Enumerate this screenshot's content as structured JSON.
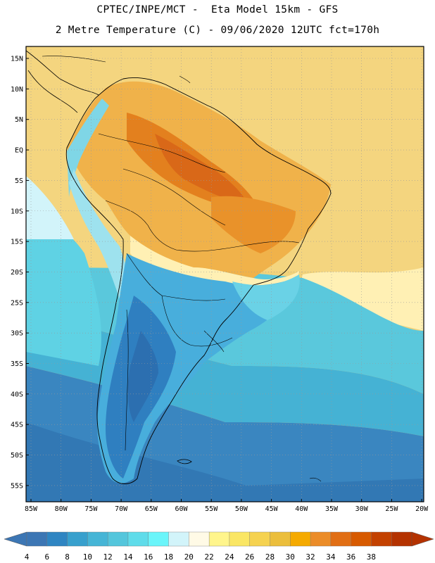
{
  "header": {
    "line1": "CPTEC/INPE/MCT -  Eta Model 15km - GFS",
    "line2": "2 Metre Temperature (C) - 09/06/2020 12UTC fct=170h"
  },
  "map": {
    "lat_labels": [
      "15N",
      "10N",
      "5N",
      "EQ",
      "5S",
      "10S",
      "15S",
      "20S",
      "25S",
      "30S",
      "35S",
      "40S",
      "45S",
      "50S",
      "55S"
    ],
    "lon_labels": [
      "85W",
      "80W",
      "75W",
      "70W",
      "65W",
      "60W",
      "55W",
      "50W",
      "45W",
      "40W",
      "35W",
      "30W",
      "25W",
      "20W"
    ]
  },
  "colorbar": {
    "labels": [
      "4",
      "6",
      "8",
      "10",
      "12",
      "14",
      "16",
      "18",
      "20",
      "22",
      "24",
      "26",
      "28",
      "30",
      "32",
      "34",
      "36",
      "38"
    ],
    "colors": [
      "#3c76b4",
      "#2f85c2",
      "#38a0cd",
      "#46b5d6",
      "#54c6dc",
      "#5fdcea",
      "#6af5fa",
      "#d2f4fa",
      "#fffae6",
      "#fff58c",
      "#fae664",
      "#f5d250",
      "#ebbe3c",
      "#f5aa00",
      "#eb8c28",
      "#e16e14",
      "#d75a00",
      "#c34100",
      "#b43200"
    ],
    "left_arrow_color": "#3c76b4",
    "right_arrow_color": "#b43200"
  }
}
